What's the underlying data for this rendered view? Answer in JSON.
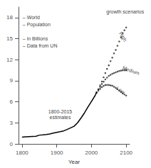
{
  "chart_data": {
    "type": "line",
    "xlabel": "Year",
    "xlim": [
      1790,
      2110
    ],
    "ylim": [
      0,
      19.5
    ],
    "xticks": [
      1800,
      1900,
      2000,
      2100
    ],
    "yticks": [
      0,
      3,
      6,
      9,
      12,
      15,
      18
    ],
    "grid": false,
    "series": [
      {
        "type": "line",
        "color": "#000000",
        "line_style": "solid",
        "x": [
          1800,
          1810,
          1820,
          1830,
          1840,
          1850,
          1860,
          1870,
          1880,
          1890,
          1900,
          1910,
          1920,
          1930,
          1940,
          1950,
          1960,
          1970,
          1980,
          1990,
          2000,
          2005,
          2010,
          2015
        ],
        "values": [
          0.98,
          1.01,
          1.04,
          1.07,
          1.1,
          1.26,
          1.3,
          1.35,
          1.43,
          1.54,
          1.65,
          1.75,
          1.86,
          2.07,
          2.3,
          2.52,
          3.02,
          3.7,
          4.43,
          5.27,
          6.06,
          6.45,
          6.85,
          7.35
        ]
      },
      {
        "type": "scatter",
        "color": "#222222",
        "marker": "dot",
        "x": [
          2015,
          2020,
          2025,
          2030,
          2035,
          2040,
          2045,
          2050,
          2055,
          2060,
          2065,
          2070,
          2075,
          2080,
          2085,
          2090,
          2095,
          2100
        ],
        "values": [
          7.35,
          7.8,
          8.35,
          8.9,
          9.5,
          10.1,
          10.7,
          11.2,
          11.8,
          12.3,
          12.9,
          13.4,
          14.0,
          14.6,
          15.2,
          15.8,
          16.2,
          16.6
        ]
      },
      {
        "type": "scatter",
        "color": "#222222",
        "marker": "dot",
        "x": [
          2015,
          2020,
          2025,
          2030,
          2035,
          2040,
          2045,
          2050,
          2055,
          2060,
          2065,
          2070,
          2075,
          2080,
          2085,
          2090,
          2095,
          2100
        ],
        "values": [
          7.35,
          7.75,
          8.15,
          8.55,
          8.88,
          9.2,
          9.45,
          9.7,
          9.85,
          10.0,
          10.1,
          10.2,
          10.3,
          10.4,
          10.45,
          10.5,
          10.5,
          10.5
        ]
      },
      {
        "type": "scatter",
        "color": "#222222",
        "marker": "dot",
        "x": [
          2015,
          2020,
          2025,
          2030,
          2035,
          2040,
          2045,
          2050,
          2055,
          2060,
          2065,
          2070,
          2075,
          2080,
          2085,
          2090,
          2095,
          2100
        ],
        "values": [
          7.35,
          7.6,
          7.85,
          8.1,
          8.27,
          8.4,
          8.42,
          8.4,
          8.35,
          8.3,
          8.15,
          8.0,
          7.8,
          7.6,
          7.4,
          7.2,
          7.05,
          6.9
        ]
      }
    ],
    "annotations": [
      {
        "text": "High",
        "x": 2083,
        "y": 15.9
      },
      {
        "text": "Medium",
        "x": 2090,
        "y": 10.9
      },
      {
        "text": "Low",
        "x": 2073,
        "y": 8.05
      },
      {
        "text": "1800-2015\nestimates",
        "x": 1910,
        "y": 4.2
      },
      {
        "text": "growth scenarios",
        "x": 2043,
        "y": 18.8
      },
      {
        "text": "– World",
        "x": 1802,
        "y": 18
      },
      {
        "text": "– Population",
        "x": 1802,
        "y": 17
      },
      {
        "text": "– in Billions",
        "x": 1802,
        "y": 15
      },
      {
        "text": "– Data from UN",
        "x": 1802,
        "y": 14
      }
    ]
  }
}
